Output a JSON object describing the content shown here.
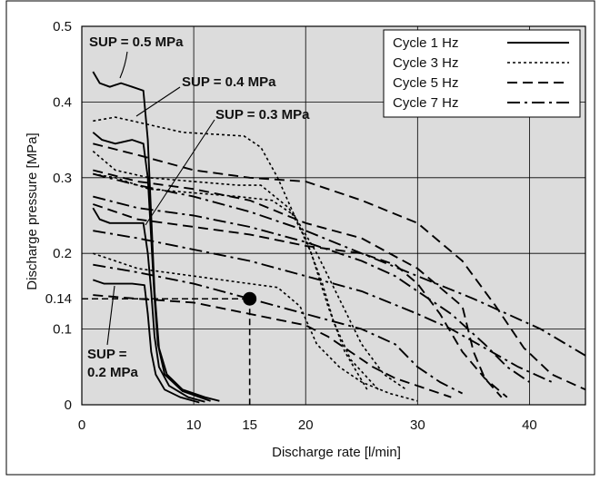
{
  "chart_data": {
    "type": "line",
    "xlabel": "Discharge rate [l/min]",
    "ylabel": "Discharge pressure [MPa]",
    "xlim": [
      0,
      45
    ],
    "ylim": [
      0,
      0.5
    ],
    "x_ticks": [
      "0",
      "10",
      "15",
      "20",
      "30",
      "40"
    ],
    "x_tick_values": [
      0,
      10,
      15,
      20,
      30,
      40
    ],
    "y_ticks": [
      "0",
      "0.1",
      "0.14",
      "0.2",
      "0.3",
      "0.4",
      "0.5"
    ],
    "y_tick_values": [
      0,
      0.1,
      0.14,
      0.2,
      0.3,
      0.4,
      0.5
    ],
    "grid": true,
    "background": "#dcdcdc",
    "legend_position": "top-right",
    "legend": [
      {
        "name": "Cycle   1 Hz",
        "dash": "solid"
      },
      {
        "name": "Cycle   3 Hz",
        "dash": "dotted"
      },
      {
        "name": "Cycle   5 Hz",
        "dash": "dashed"
      },
      {
        "name": "Cycle   7 Hz",
        "dash": "dashdot"
      }
    ],
    "annotations": [
      {
        "text": "SUP = 0.5 MPa"
      },
      {
        "text": "SUP = 0.4 MPa"
      },
      {
        "text": "SUP = 0.3 MPa"
      },
      {
        "text": "SUP ="
      },
      {
        "text": "0.2 MPa"
      }
    ],
    "marker_point": {
      "x": 15,
      "y": 0.14
    },
    "series": [
      {
        "sup": 0.5,
        "freq": "1 Hz",
        "dash": "solid",
        "points": [
          [
            1,
            0.44
          ],
          [
            1.6,
            0.425
          ],
          [
            2.5,
            0.42
          ],
          [
            3.5,
            0.425
          ],
          [
            4.5,
            0.42
          ],
          [
            5.5,
            0.415
          ],
          [
            5.9,
            0.35
          ],
          [
            6.2,
            0.25
          ],
          [
            6.5,
            0.15
          ],
          [
            6.9,
            0.075
          ],
          [
            7.6,
            0.04
          ],
          [
            9,
            0.02
          ],
          [
            11,
            0.01
          ],
          [
            12.3,
            0.005
          ]
        ]
      },
      {
        "sup": 0.4,
        "freq": "1 Hz",
        "dash": "solid",
        "points": [
          [
            1,
            0.36
          ],
          [
            1.8,
            0.35
          ],
          [
            3,
            0.345
          ],
          [
            4.5,
            0.35
          ],
          [
            5.5,
            0.345
          ],
          [
            5.9,
            0.3
          ],
          [
            6.2,
            0.22
          ],
          [
            6.5,
            0.14
          ],
          [
            6.8,
            0.08
          ],
          [
            7.4,
            0.04
          ],
          [
            9,
            0.018
          ],
          [
            11.5,
            0.005
          ]
        ]
      },
      {
        "sup": 0.3,
        "freq": "1 Hz",
        "dash": "solid",
        "points": [
          [
            1,
            0.26
          ],
          [
            1.6,
            0.245
          ],
          [
            2.5,
            0.24
          ],
          [
            4,
            0.24
          ],
          [
            5.5,
            0.24
          ],
          [
            5.9,
            0.2
          ],
          [
            6.2,
            0.15
          ],
          [
            6.5,
            0.09
          ],
          [
            6.9,
            0.05
          ],
          [
            7.8,
            0.025
          ],
          [
            9.5,
            0.01
          ],
          [
            11,
            0.004
          ]
        ]
      },
      {
        "sup": 0.2,
        "freq": "1 Hz",
        "dash": "solid",
        "points": [
          [
            1,
            0.165
          ],
          [
            2,
            0.16
          ],
          [
            3,
            0.16
          ],
          [
            4.5,
            0.16
          ],
          [
            5.6,
            0.158
          ],
          [
            5.9,
            0.12
          ],
          [
            6.2,
            0.07
          ],
          [
            6.6,
            0.04
          ],
          [
            7.4,
            0.02
          ],
          [
            8.8,
            0.01
          ],
          [
            10.5,
            0.003
          ]
        ]
      },
      {
        "sup": 0.5,
        "freq": "3 Hz",
        "dash": "dotted",
        "points": [
          [
            1,
            0.375
          ],
          [
            3,
            0.38
          ],
          [
            6,
            0.37
          ],
          [
            9,
            0.36
          ],
          [
            14.5,
            0.355
          ],
          [
            16,
            0.34
          ],
          [
            17.5,
            0.3
          ],
          [
            19,
            0.25
          ],
          [
            20.5,
            0.2
          ],
          [
            22,
            0.13
          ],
          [
            23.5,
            0.07
          ],
          [
            25.5,
            0.02
          ]
        ]
      },
      {
        "sup": 0.4,
        "freq": "3 Hz",
        "dash": "dotted",
        "points": [
          [
            1,
            0.335
          ],
          [
            3,
            0.31
          ],
          [
            6,
            0.3
          ],
          [
            10,
            0.295
          ],
          [
            14,
            0.29
          ],
          [
            16,
            0.29
          ],
          [
            18.5,
            0.26
          ],
          [
            20,
            0.22
          ],
          [
            21.5,
            0.16
          ],
          [
            22.5,
            0.11
          ],
          [
            24,
            0.06
          ],
          [
            26.5,
            0.02
          ]
        ]
      },
      {
        "sup": 0.3,
        "freq": "3 Hz",
        "dash": "dotted",
        "points": [
          [
            1,
            0.305
          ],
          [
            3,
            0.3
          ],
          [
            6,
            0.285
          ],
          [
            10,
            0.28
          ],
          [
            14,
            0.275
          ],
          [
            17,
            0.27
          ],
          [
            19,
            0.25
          ],
          [
            21,
            0.2
          ],
          [
            23,
            0.14
          ],
          [
            25,
            0.08
          ],
          [
            27,
            0.04
          ],
          [
            29,
            0.02
          ]
        ]
      },
      {
        "sup": 0.2,
        "freq": "3 Hz",
        "dash": "dotted",
        "points": [
          [
            1,
            0.2
          ],
          [
            5,
            0.18
          ],
          [
            10,
            0.17
          ],
          [
            15,
            0.16
          ],
          [
            17.5,
            0.155
          ],
          [
            19.5,
            0.13
          ],
          [
            21,
            0.08
          ],
          [
            23,
            0.05
          ],
          [
            25,
            0.03
          ],
          [
            27.5,
            0.015
          ],
          [
            30,
            0.005
          ]
        ]
      },
      {
        "sup": 0.5,
        "freq": "5 Hz",
        "dash": "dashed",
        "points": [
          [
            1,
            0.345
          ],
          [
            5,
            0.33
          ],
          [
            10,
            0.31
          ],
          [
            15,
            0.3
          ],
          [
            20,
            0.295
          ],
          [
            25,
            0.27
          ],
          [
            30,
            0.24
          ],
          [
            34,
            0.19
          ],
          [
            37,
            0.13
          ],
          [
            39.5,
            0.075
          ],
          [
            42,
            0.04
          ],
          [
            45,
            0.02
          ]
        ]
      },
      {
        "sup": 0.4,
        "freq": "5 Hz",
        "dash": "dashed",
        "points": [
          [
            1,
            0.31
          ],
          [
            5,
            0.295
          ],
          [
            10,
            0.285
          ],
          [
            15,
            0.27
          ],
          [
            20,
            0.24
          ],
          [
            25,
            0.22
          ],
          [
            30,
            0.18
          ],
          [
            34,
            0.13
          ],
          [
            35,
            0.07
          ],
          [
            36,
            0.035
          ],
          [
            37.5,
            0.01
          ]
        ]
      },
      {
        "sup": 0.3,
        "freq": "5 Hz",
        "dash": "dashed",
        "points": [
          [
            1,
            0.265
          ],
          [
            5,
            0.245
          ],
          [
            10,
            0.235
          ],
          [
            15,
            0.225
          ],
          [
            20,
            0.21
          ],
          [
            25,
            0.2
          ],
          [
            28,
            0.185
          ],
          [
            30,
            0.16
          ],
          [
            32,
            0.12
          ],
          [
            34,
            0.07
          ],
          [
            36,
            0.035
          ],
          [
            38,
            0.01
          ]
        ]
      },
      {
        "sup": 0.2,
        "freq": "5 Hz",
        "dash": "dashed",
        "points": [
          [
            1,
            0.145
          ],
          [
            5,
            0.14
          ],
          [
            10,
            0.135
          ],
          [
            15,
            0.12
          ],
          [
            20,
            0.105
          ],
          [
            22,
            0.09
          ],
          [
            24,
            0.07
          ],
          [
            26,
            0.05
          ],
          [
            28,
            0.035
          ],
          [
            31,
            0.02
          ],
          [
            33,
            0.01
          ]
        ]
      },
      {
        "sup": 0.5,
        "freq": "7 Hz",
        "dash": "dashdot",
        "points": [
          [
            1,
            0.305
          ],
          [
            5,
            0.29
          ],
          [
            10,
            0.275
          ],
          [
            15,
            0.255
          ],
          [
            20,
            0.23
          ],
          [
            25,
            0.2
          ],
          [
            30,
            0.17
          ],
          [
            35,
            0.14
          ],
          [
            38,
            0.12
          ],
          [
            41,
            0.1
          ],
          [
            45,
            0.065
          ]
        ]
      },
      {
        "sup": 0.4,
        "freq": "7 Hz",
        "dash": "dashdot",
        "points": [
          [
            1,
            0.275
          ],
          [
            5,
            0.26
          ],
          [
            10,
            0.25
          ],
          [
            15,
            0.235
          ],
          [
            20,
            0.215
          ],
          [
            25,
            0.19
          ],
          [
            28,
            0.17
          ],
          [
            30,
            0.15
          ],
          [
            33,
            0.12
          ],
          [
            36,
            0.08
          ],
          [
            38,
            0.05
          ],
          [
            40,
            0.03
          ]
        ]
      },
      {
        "sup": 0.3,
        "freq": "7 Hz",
        "dash": "dashdot",
        "points": [
          [
            1,
            0.23
          ],
          [
            5,
            0.22
          ],
          [
            10,
            0.205
          ],
          [
            15,
            0.19
          ],
          [
            20,
            0.17
          ],
          [
            25,
            0.15
          ],
          [
            30,
            0.12
          ],
          [
            33,
            0.1
          ],
          [
            36,
            0.075
          ],
          [
            39,
            0.05
          ],
          [
            42,
            0.03
          ]
        ]
      },
      {
        "sup": 0.2,
        "freq": "7 Hz",
        "dash": "dashdot",
        "points": [
          [
            1,
            0.185
          ],
          [
            5,
            0.175
          ],
          [
            10,
            0.16
          ],
          [
            15,
            0.14
          ],
          [
            20,
            0.12
          ],
          [
            25,
            0.1
          ],
          [
            28,
            0.08
          ],
          [
            30,
            0.05
          ],
          [
            32,
            0.03
          ],
          [
            34,
            0.015
          ]
        ]
      }
    ]
  }
}
